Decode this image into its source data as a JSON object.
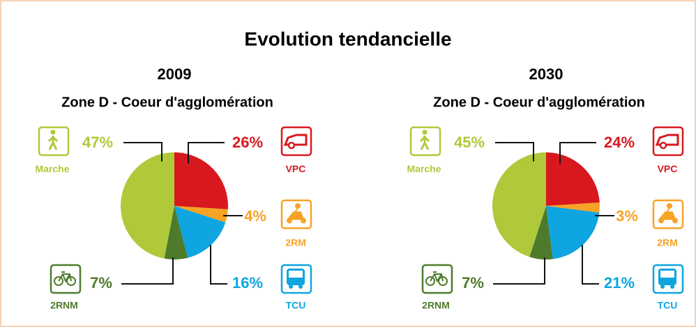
{
  "title": "Evolution tendancielle",
  "chart_data": [
    {
      "type": "pie",
      "title": "2009",
      "subtitle": "Zone D - Coeur d'agglomération",
      "categories": [
        "VPC",
        "2RM",
        "TCU",
        "2RNM",
        "Marche"
      ],
      "values": [
        26,
        4,
        16,
        7,
        47
      ],
      "value_labels": [
        "26%",
        "4%",
        "16%",
        "7%",
        "47%"
      ],
      "colors": [
        "#d7191f",
        "#f7a325",
        "#0ea5e0",
        "#4e7b2b",
        "#afc93a"
      ]
    },
    {
      "type": "pie",
      "title": "2030",
      "subtitle": "Zone D - Coeur d'agglomération",
      "categories": [
        "VPC",
        "2RM",
        "TCU",
        "2RNM",
        "Marche"
      ],
      "values": [
        24,
        3,
        21,
        7,
        45
      ],
      "value_labels": [
        "24%",
        "3%",
        "21%",
        "7%",
        "45%"
      ],
      "colors": [
        "#d7191f",
        "#f7a325",
        "#0ea5e0",
        "#4e7b2b",
        "#afc93a"
      ]
    }
  ]
}
